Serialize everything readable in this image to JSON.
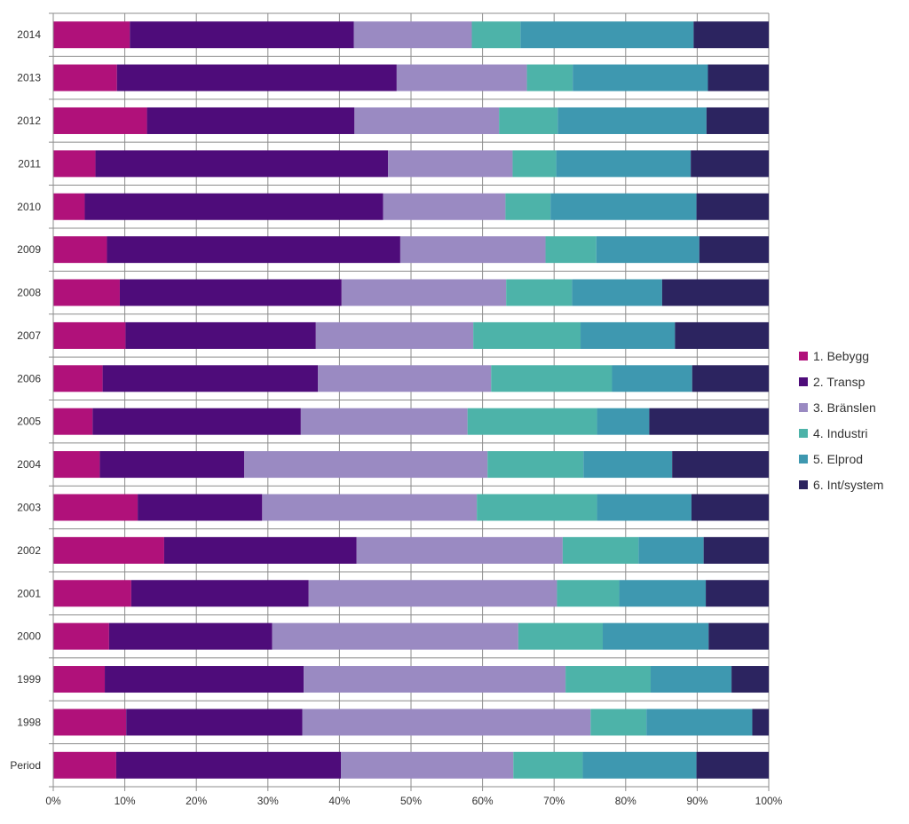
{
  "chart_data": {
    "type": "bar",
    "orientation": "horizontal",
    "stacked": "percent",
    "title": "",
    "xlabel": "",
    "ylabel": "",
    "xlim": [
      0,
      100
    ],
    "grid": true,
    "legend_position": "right",
    "x_ticks": [
      "0%",
      "10%",
      "20%",
      "30%",
      "40%",
      "50%",
      "60%",
      "70%",
      "80%",
      "90%",
      "100%"
    ],
    "categories": [
      "2014",
      "2013",
      "2012",
      "2011",
      "2010",
      "2009",
      "2008",
      "2007",
      "2006",
      "2005",
      "2004",
      "2003",
      "2002",
      "2001",
      "2000",
      "1999",
      "1998",
      "Period"
    ],
    "series": [
      {
        "name": "1. Bebygg",
        "color": "#B0117A",
        "values": [
          10.7,
          8.9,
          13.1,
          5.9,
          4.4,
          7.5,
          9.3,
          10.1,
          6.9,
          5.5,
          6.5,
          11.8,
          15.5,
          10.9,
          7.8,
          7.2,
          10.2,
          8.8
        ]
      },
      {
        "name": "2. Transp",
        "color": "#4E0C7A",
        "values": [
          31.3,
          39.1,
          29.0,
          40.9,
          41.7,
          41.0,
          31.0,
          26.6,
          30.1,
          29.1,
          20.2,
          17.4,
          26.9,
          24.8,
          22.8,
          27.8,
          24.6,
          31.4
        ]
      },
      {
        "name": "3. Bränslen",
        "color": "#9A8AC2",
        "values": [
          16.5,
          18.2,
          20.2,
          17.4,
          17.1,
          20.3,
          23.0,
          22.0,
          24.2,
          23.3,
          34.0,
          30.0,
          28.8,
          34.7,
          34.4,
          36.6,
          40.3,
          24.1
        ]
      },
      {
        "name": "4. Industri",
        "color": "#4DB3A9",
        "values": [
          6.8,
          6.4,
          8.2,
          6.1,
          6.3,
          7.1,
          9.2,
          15.0,
          16.9,
          18.1,
          13.4,
          16.8,
          10.6,
          8.7,
          11.8,
          11.9,
          7.8,
          9.7
        ]
      },
      {
        "name": "5. Elprod",
        "color": "#3E98B0",
        "values": [
          24.2,
          18.9,
          20.8,
          18.8,
          20.4,
          14.4,
          12.6,
          13.2,
          11.2,
          7.3,
          12.4,
          13.2,
          9.1,
          12.1,
          14.8,
          11.3,
          14.8,
          15.9
        ]
      },
      {
        "name": "6. Int/system",
        "color": "#2C2460",
        "values": [
          10.5,
          8.5,
          8.7,
          10.9,
          10.1,
          9.7,
          14.9,
          13.1,
          10.7,
          16.7,
          13.5,
          10.8,
          9.1,
          8.8,
          8.4,
          5.2,
          2.3,
          10.1
        ]
      }
    ]
  }
}
